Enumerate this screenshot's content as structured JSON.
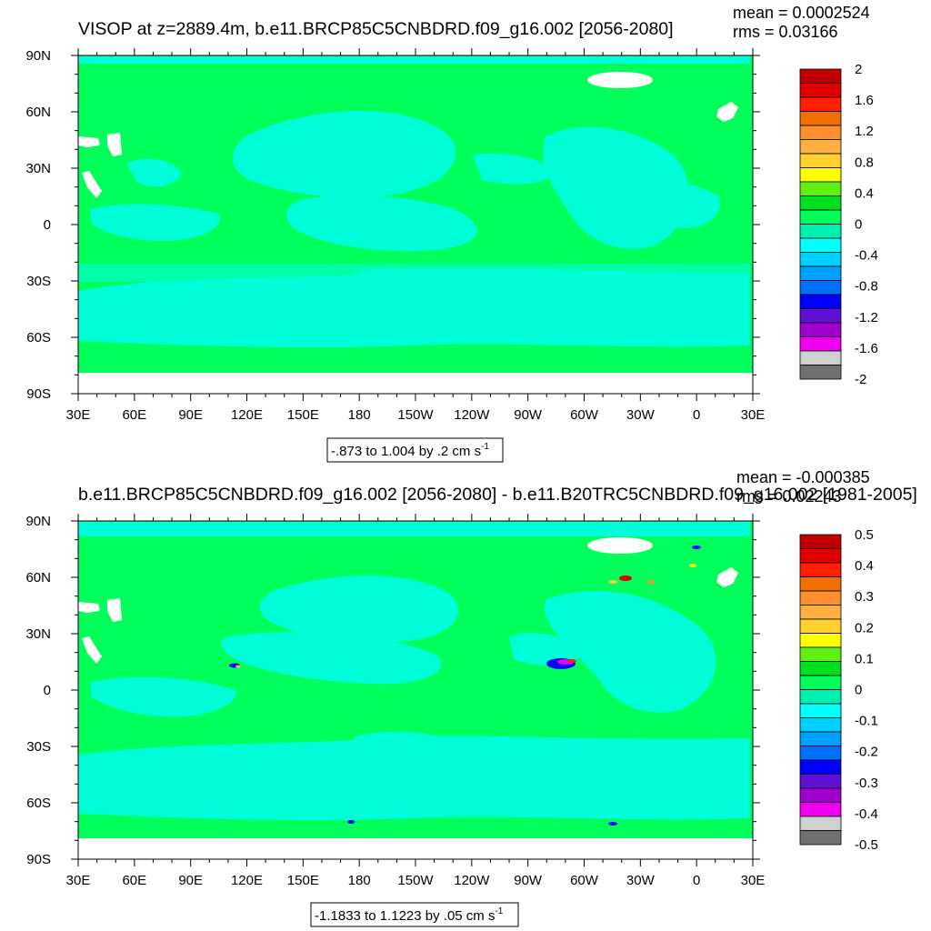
{
  "colors": {
    "ocean_base": "#00ff5a",
    "ocean_negative": "#00ffd8",
    "land": "#ffffff",
    "frame": "#000000"
  },
  "chart_data": [
    {
      "type": "heatmap",
      "title": "VISOP at z=2889.4m, b.e11.BRCP85C5CNBDRD.f09_g16.002 [2056-2080]",
      "stats": {
        "mean": "mean = 0.0002524",
        "rms": "rms = 0.03166"
      },
      "x_ticks": [
        "30E",
        "60E",
        "90E",
        "120E",
        "150E",
        "180",
        "150W",
        "120W",
        "90W",
        "60W",
        "30W",
        "0",
        "30E"
      ],
      "y_ticks": [
        "90N",
        "60N",
        "30N",
        "0",
        "30S",
        "60S",
        "90S"
      ],
      "x_range": [
        30,
        390
      ],
      "y_range": [
        -90,
        90
      ],
      "contour_info": "-.873 to 1.004 by .2 cm s",
      "contour_unit_exp": "-1",
      "colorbar": {
        "labels": [
          "2",
          "1.6",
          "1.2",
          "0.8",
          "0.4",
          "0",
          "-0.4",
          "-0.8",
          "-1.2",
          "-1.6",
          "-2"
        ],
        "colors": [
          "#c00000",
          "#e00000",
          "#ff2000",
          "#f07000",
          "#ff9030",
          "#ffb040",
          "#ffd030",
          "#ffff00",
          "#60f010",
          "#00e020",
          "#00ff5a",
          "#00f0b0",
          "#00ffff",
          "#00d0ff",
          "#00a0ff",
          "#0070ff",
          "#0000ff",
          "#6010d0",
          "#a000d0",
          "#f000f0",
          "#d0d0d0",
          "#707070"
        ]
      }
    },
    {
      "type": "heatmap",
      "title": "b.e11.BRCP85C5CNBDRD.f09_g16.002 [2056-2080] - b.e11.B20TRC5CNBDRD.f09_g16.002 [1981-2005]",
      "stats": {
        "mean": "mean = -0.000385",
        "rms": "rms = 0.02243"
      },
      "x_ticks": [
        "30E",
        "60E",
        "90E",
        "120E",
        "150E",
        "180",
        "150W",
        "120W",
        "90W",
        "60W",
        "30W",
        "0",
        "30E"
      ],
      "y_ticks": [
        "90N",
        "60N",
        "30N",
        "0",
        "30S",
        "60S",
        "90S"
      ],
      "x_range": [
        30,
        390
      ],
      "y_range": [
        -90,
        90
      ],
      "contour_info": "-1.1833 to 1.1223 by .05 cm s",
      "contour_unit_exp": "-1",
      "colorbar": {
        "labels": [
          "0.5",
          "0.4",
          "0.3",
          "0.2",
          "0.1",
          "0",
          "-0.1",
          "-0.2",
          "-0.3",
          "-0.4",
          "-0.5"
        ],
        "colors": [
          "#c00000",
          "#e00000",
          "#ff2000",
          "#f07000",
          "#ff9030",
          "#ffb040",
          "#ffd030",
          "#ffff00",
          "#60f010",
          "#00e020",
          "#00ff5a",
          "#00f0b0",
          "#00ffff",
          "#00d0ff",
          "#00a0ff",
          "#0070ff",
          "#0000ff",
          "#6010d0",
          "#a000d0",
          "#f000f0",
          "#d0d0d0",
          "#707070"
        ]
      }
    }
  ]
}
